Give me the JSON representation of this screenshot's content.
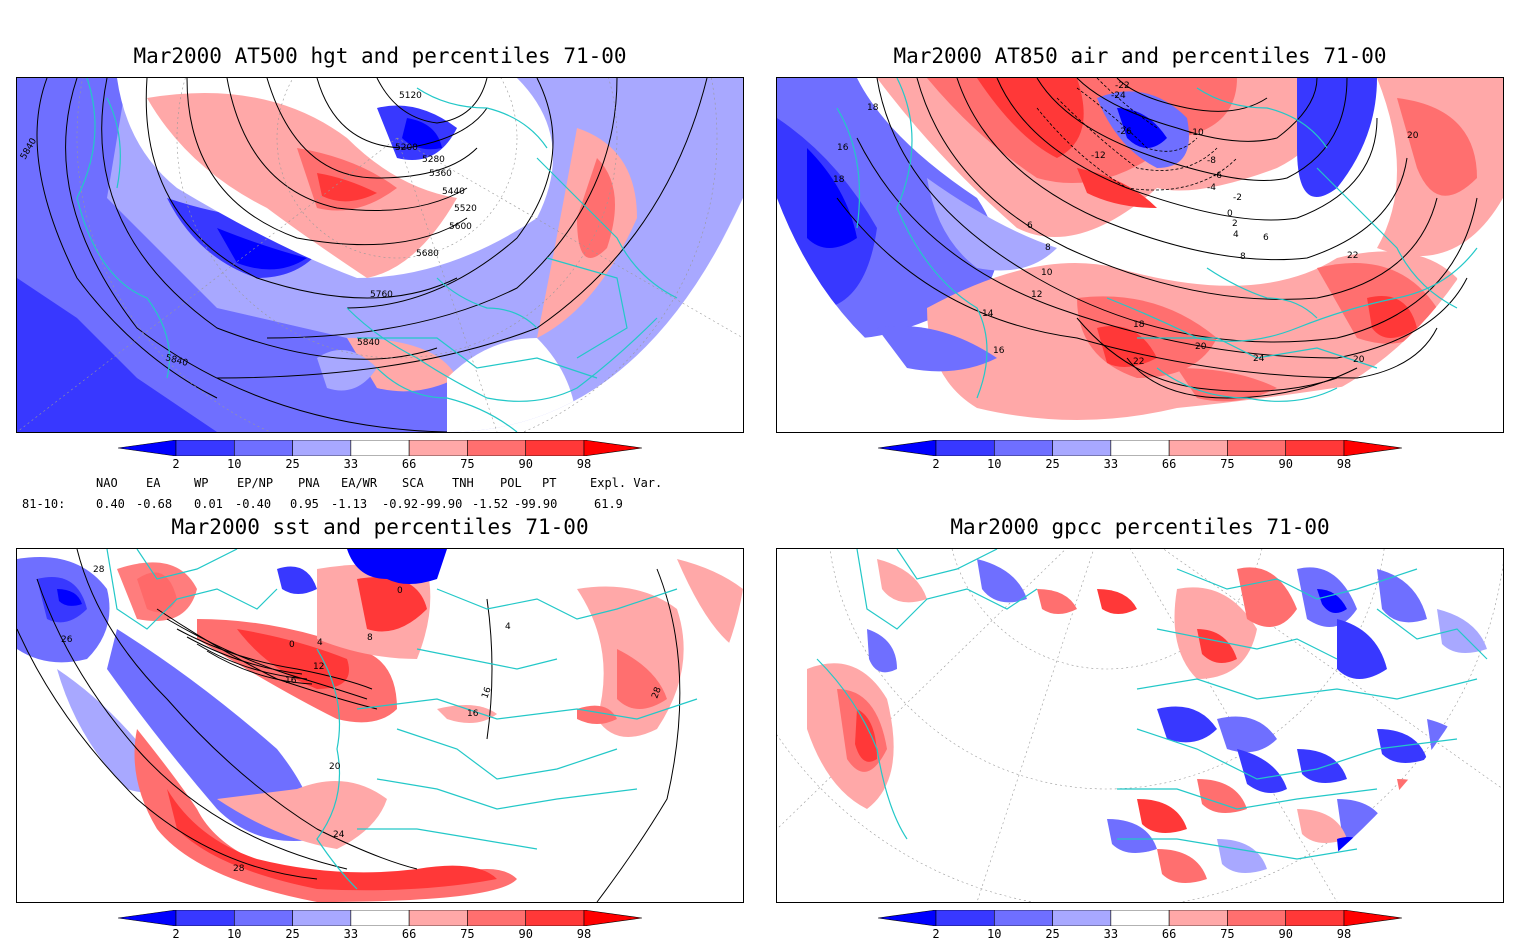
{
  "colorbar": {
    "labels": [
      "2",
      "10",
      "25",
      "33",
      "66",
      "75",
      "90",
      "98"
    ],
    "colors": [
      "#0000ff",
      "#3838ff",
      "#6f6fff",
      "#a8a8ff",
      "#ffffff",
      "#ffa8a8",
      "#ff6f6f",
      "#ff3838",
      "#ff0000"
    ]
  },
  "panels": [
    {
      "title": "Mar2000 AT500 hgt and percentiles 71-00",
      "contour_labels": [
        "5120",
        "5200",
        "5280",
        "5360",
        "5440",
        "5520",
        "5600",
        "5680",
        "5760",
        "5840",
        "5840",
        "5840"
      ]
    },
    {
      "title": "Mar2000 AT850 air and percentiles 71-00",
      "contour_labels": [
        "-22",
        "-24",
        "-26",
        "-12",
        "-10",
        "-8",
        "-6",
        "-4",
        "-2",
        "0",
        "2",
        "4",
        "6",
        "6",
        "8",
        "8",
        "10",
        "12",
        "14",
        "16",
        "18",
        "20",
        "22",
        "24",
        "16",
        "18",
        "18",
        "20",
        "22",
        "20"
      ]
    },
    {
      "title": "Mar2000 sst and percentiles 71-00",
      "contour_labels": [
        "28",
        "26",
        "0",
        "4",
        "8",
        "12",
        "16",
        "20",
        "24",
        "28",
        "16",
        "16",
        "28",
        "4",
        "0"
      ]
    },
    {
      "title": "Mar2000 gpcc percentiles 71-00",
      "contour_labels": []
    }
  ],
  "teleconnection": {
    "headers": [
      "NAO",
      "EA",
      "WP",
      "EP/NP",
      "PNA",
      "EA/WR",
      "SCA",
      "TNH",
      "POL",
      "PT",
      "Expl. Var."
    ],
    "row_label": "81-10:",
    "values": [
      "0.40",
      "-0.68",
      "0.01",
      "-0.40",
      "0.95",
      "-1.13",
      "-0.92",
      "-99.90",
      "-1.52",
      "-99.90",
      "61.9"
    ]
  }
}
